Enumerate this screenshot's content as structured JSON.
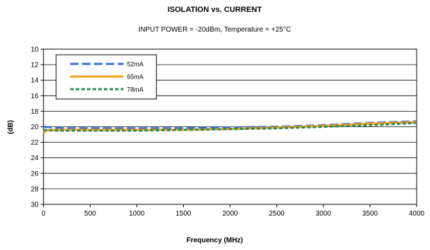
{
  "chart_data": {
    "type": "line",
    "title": "ISOLATION vs. CURRENT",
    "subtitle": "INPUT POWER = -20dBm, Temperature = +25°C",
    "xlabel": "Frequency (MHz)",
    "ylabel": "(dB)",
    "xlim": [
      0,
      4000
    ],
    "ylim": [
      10,
      30
    ],
    "y_reversed": true,
    "x_ticks": [
      0,
      500,
      1000,
      1500,
      2000,
      2500,
      3000,
      3500,
      4000
    ],
    "y_ticks": [
      10,
      12,
      14,
      16,
      18,
      20,
      22,
      24,
      26,
      28,
      30
    ],
    "grid": "horizontal",
    "legend_position": "top-left",
    "series": [
      {
        "name": "52mA",
        "color": "#3b6fd6",
        "dash": "long-dash",
        "x": [
          0,
          100,
          200,
          500,
          1000,
          1500,
          2000,
          2500,
          3000,
          3500,
          4000
        ],
        "y": [
          20.0,
          20.1,
          20.2,
          20.2,
          20.2,
          20.2,
          20.1,
          20.0,
          19.8,
          19.5,
          19.3
        ]
      },
      {
        "name": "65mA",
        "color": "#f5a11b",
        "dash": "solid",
        "x": [
          0,
          30,
          100,
          200,
          500,
          1000,
          1500,
          2000,
          2500,
          3000,
          3500,
          4000
        ],
        "y": [
          20.8,
          20.5,
          20.4,
          20.4,
          20.4,
          20.4,
          20.4,
          20.3,
          20.1,
          19.9,
          19.6,
          19.4
        ]
      },
      {
        "name": "78mA",
        "color": "#2e8b57",
        "dash": "short-dash",
        "x": [
          0,
          100,
          200,
          500,
          1000,
          1500,
          2000,
          2500,
          3000,
          3500,
          4000
        ],
        "y": [
          20.4,
          20.5,
          20.5,
          20.5,
          20.5,
          20.4,
          20.3,
          20.2,
          20.0,
          19.8,
          19.5
        ]
      }
    ]
  }
}
